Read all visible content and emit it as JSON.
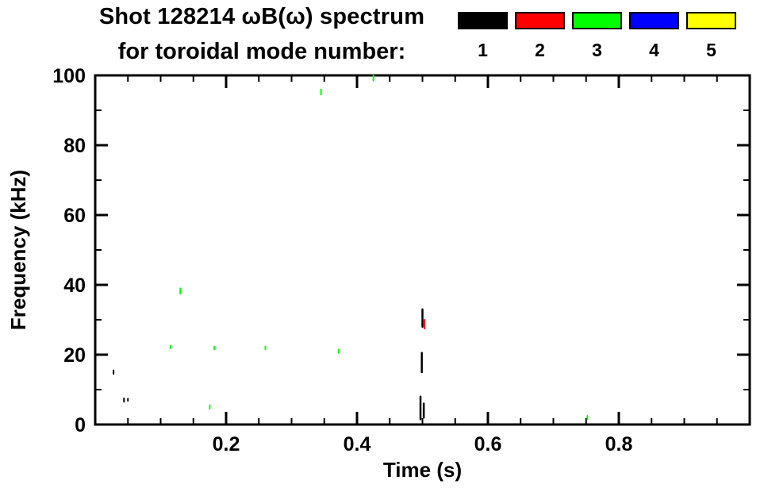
{
  "chart_data": {
    "type": "scatter",
    "title": "Shot 128214 ωB(ω) spectrum",
    "subtitle": "for toroidal mode number:",
    "xlabel": "Time (s)",
    "ylabel": "Frequency (kHz)",
    "xlim": [
      0,
      1
    ],
    "ylim": [
      0,
      100
    ],
    "xticks": [
      0.2,
      0.4,
      0.6,
      0.8
    ],
    "yticks": [
      0,
      20,
      40,
      60,
      80,
      100
    ],
    "x_minor_step": 0.05,
    "y_minor_step": 10,
    "grid": false,
    "legend": {
      "position": "top-right",
      "entries": [
        {
          "label": "1",
          "color": "#000000"
        },
        {
          "label": "2",
          "color": "#ff0000"
        },
        {
          "label": "3",
          "color": "#00ff00"
        },
        {
          "label": "4",
          "color": "#0000ff"
        },
        {
          "label": "5",
          "color": "#ffff00"
        }
      ]
    },
    "series": [
      {
        "name": "toroidal mode n=1",
        "color": "#000000",
        "segments": [
          {
            "t": 0.028,
            "f": [
              14.5,
              15.5
            ]
          },
          {
            "t": 0.044,
            "f": [
              6.5,
              7.5
            ]
          },
          {
            "t": 0.05,
            "f": [
              6.8,
              7.4
            ]
          },
          {
            "t": 0.497,
            "f": [
              1.5,
              8.0
            ],
            "w": 2.5
          },
          {
            "t": 0.502,
            "f": [
              2.0,
              6.0
            ],
            "w": 2.5
          },
          {
            "t": 0.499,
            "f": [
              15.0,
              20.5
            ],
            "w": 2.5
          },
          {
            "t": 0.5,
            "f": [
              28.0,
              33.0
            ],
            "w": 2.5
          }
        ]
      },
      {
        "name": "toroidal mode n=2",
        "color": "#ff0000",
        "segments": [
          {
            "t": 0.503,
            "f": [
              27.5,
              30.0
            ]
          }
        ]
      },
      {
        "name": "toroidal mode n=3",
        "color": "#00ff00",
        "segments": [
          {
            "t": 0.115,
            "f": [
              21.8,
              22.6
            ]
          },
          {
            "t": 0.13,
            "f": [
              37.5,
              39.0
            ]
          },
          {
            "t": 0.175,
            "f": [
              4.5,
              5.5
            ]
          },
          {
            "t": 0.182,
            "f": [
              21.5,
              22.3
            ]
          },
          {
            "t": 0.26,
            "f": [
              21.5,
              22.4
            ]
          },
          {
            "t": 0.345,
            "f": [
              94.5,
              96.0
            ]
          },
          {
            "t": 0.372,
            "f": [
              20.5,
              21.5
            ]
          },
          {
            "t": 0.425,
            "f": [
              98.5,
              100.0
            ]
          },
          {
            "t": 0.752,
            "f": [
              1.5,
              2.5
            ]
          }
        ]
      },
      {
        "name": "toroidal mode n=4",
        "color": "#0000ff",
        "segments": []
      },
      {
        "name": "toroidal mode n=5",
        "color": "#ffff00",
        "segments": []
      }
    ]
  }
}
